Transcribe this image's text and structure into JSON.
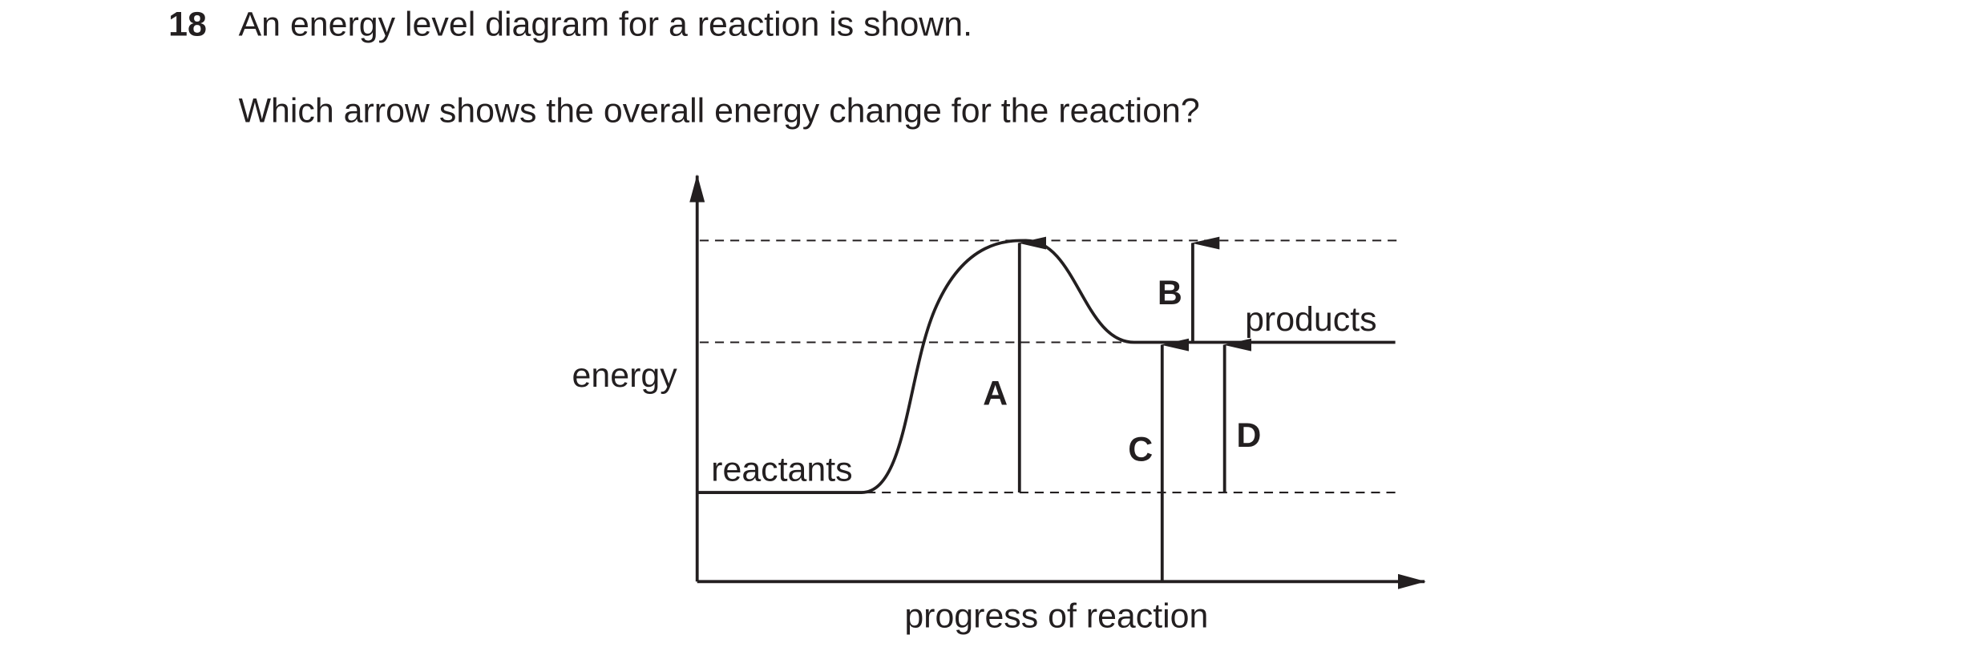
{
  "question": {
    "number": "18",
    "text": "An energy level diagram for a reaction is shown.",
    "prompt": "Which arrow shows the overall energy change for the reaction?"
  },
  "diagram": {
    "y_axis_label": "energy",
    "x_axis_label": "progress of reaction",
    "reactants_label": "reactants",
    "products_label": "products",
    "arrows": [
      "A",
      "B",
      "C",
      "D"
    ]
  }
}
